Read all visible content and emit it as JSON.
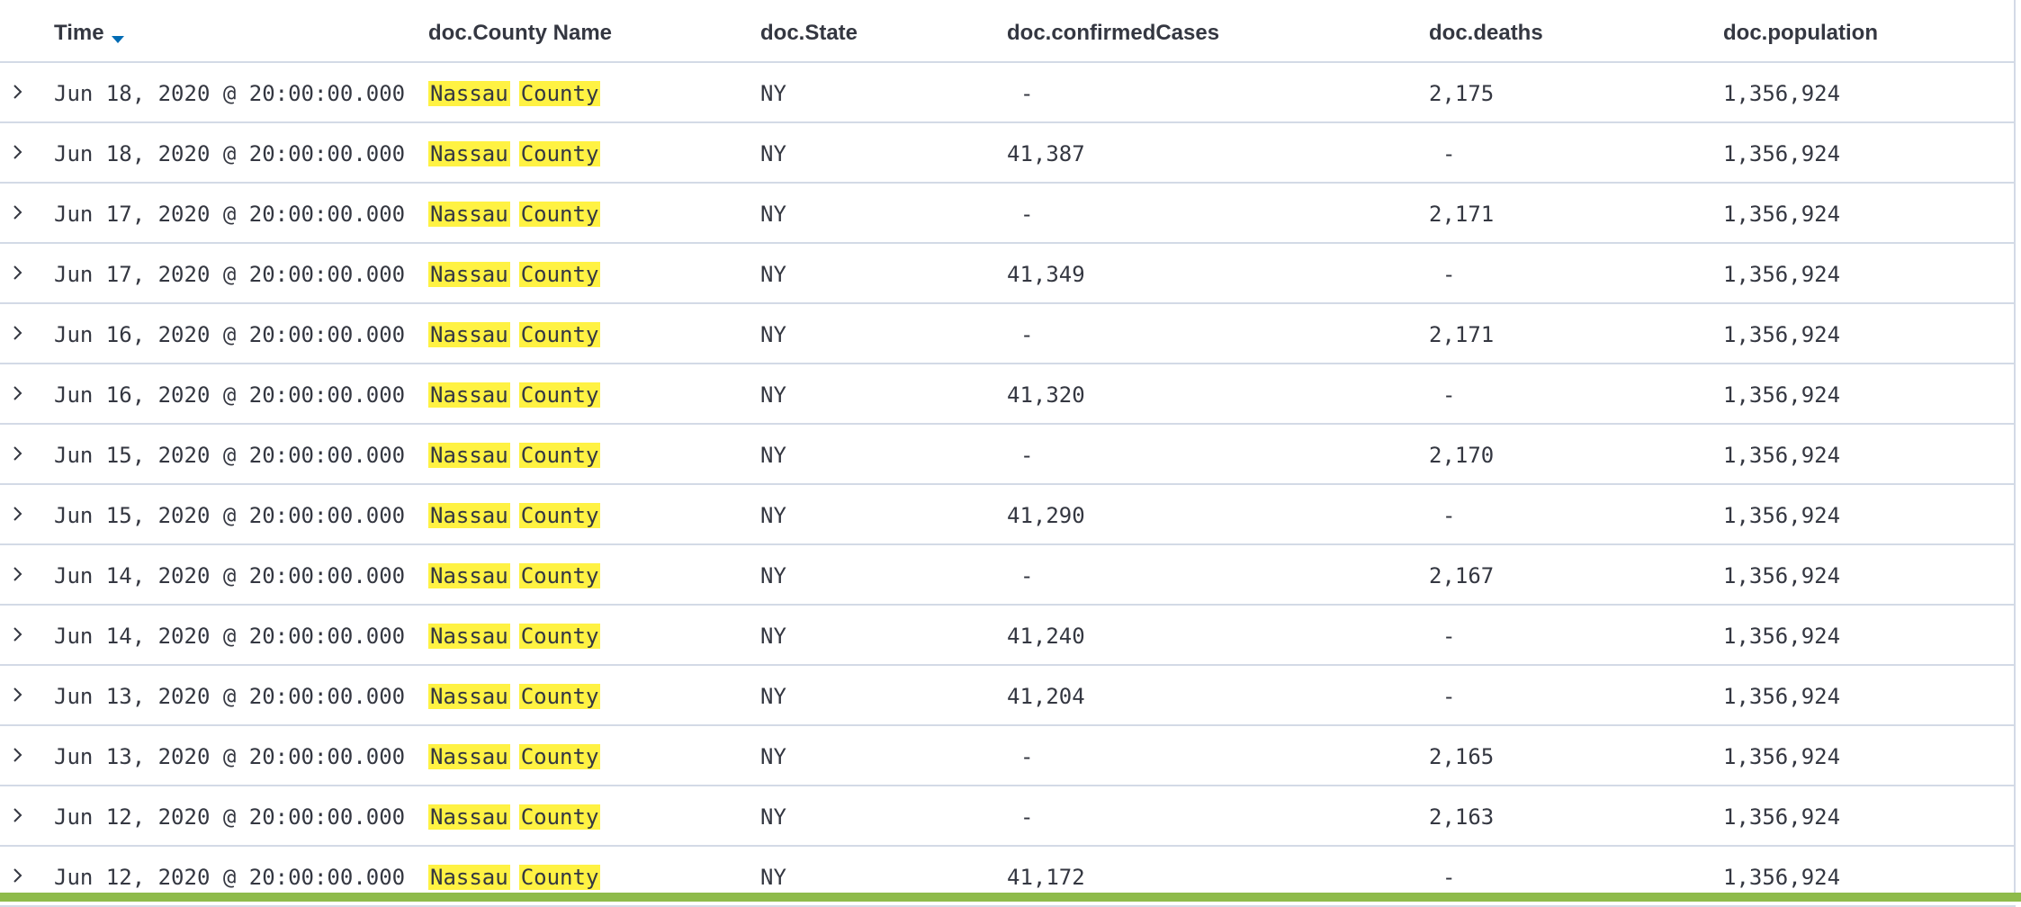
{
  "table": {
    "columns": [
      {
        "key": "time",
        "label": "Time",
        "sorted": "desc"
      },
      {
        "key": "county",
        "label": "doc.County Name"
      },
      {
        "key": "state",
        "label": "doc.State"
      },
      {
        "key": "confirmed",
        "label": "doc.confirmedCases"
      },
      {
        "key": "deaths",
        "label": "doc.deaths"
      },
      {
        "key": "population",
        "label": "doc.population"
      }
    ],
    "rows": [
      {
        "time": "Jun 18, 2020 @ 20:00:00.000",
        "county_word1": "Nassau",
        "county_word2": "County",
        "state": "NY",
        "confirmed": "-",
        "deaths": "2,175",
        "population": "1,356,924"
      },
      {
        "time": "Jun 18, 2020 @ 20:00:00.000",
        "county_word1": "Nassau",
        "county_word2": "County",
        "state": "NY",
        "confirmed": "41,387",
        "deaths": "-",
        "population": "1,356,924"
      },
      {
        "time": "Jun 17, 2020 @ 20:00:00.000",
        "county_word1": "Nassau",
        "county_word2": "County",
        "state": "NY",
        "confirmed": "-",
        "deaths": "2,171",
        "population": "1,356,924"
      },
      {
        "time": "Jun 17, 2020 @ 20:00:00.000",
        "county_word1": "Nassau",
        "county_word2": "County",
        "state": "NY",
        "confirmed": "41,349",
        "deaths": "-",
        "population": "1,356,924"
      },
      {
        "time": "Jun 16, 2020 @ 20:00:00.000",
        "county_word1": "Nassau",
        "county_word2": "County",
        "state": "NY",
        "confirmed": "-",
        "deaths": "2,171",
        "population": "1,356,924"
      },
      {
        "time": "Jun 16, 2020 @ 20:00:00.000",
        "county_word1": "Nassau",
        "county_word2": "County",
        "state": "NY",
        "confirmed": "41,320",
        "deaths": "-",
        "population": "1,356,924"
      },
      {
        "time": "Jun 15, 2020 @ 20:00:00.000",
        "county_word1": "Nassau",
        "county_word2": "County",
        "state": "NY",
        "confirmed": "-",
        "deaths": "2,170",
        "population": "1,356,924"
      },
      {
        "time": "Jun 15, 2020 @ 20:00:00.000",
        "county_word1": "Nassau",
        "county_word2": "County",
        "state": "NY",
        "confirmed": "41,290",
        "deaths": "-",
        "population": "1,356,924"
      },
      {
        "time": "Jun 14, 2020 @ 20:00:00.000",
        "county_word1": "Nassau",
        "county_word2": "County",
        "state": "NY",
        "confirmed": "-",
        "deaths": "2,167",
        "population": "1,356,924"
      },
      {
        "time": "Jun 14, 2020 @ 20:00:00.000",
        "county_word1": "Nassau",
        "county_word2": "County",
        "state": "NY",
        "confirmed": "41,240",
        "deaths": "-",
        "population": "1,356,924"
      },
      {
        "time": "Jun 13, 2020 @ 20:00:00.000",
        "county_word1": "Nassau",
        "county_word2": "County",
        "state": "NY",
        "confirmed": "41,204",
        "deaths": "-",
        "population": "1,356,924"
      },
      {
        "time": "Jun 13, 2020 @ 20:00:00.000",
        "county_word1": "Nassau",
        "county_word2": "County",
        "state": "NY",
        "confirmed": "-",
        "deaths": "2,165",
        "population": "1,356,924"
      },
      {
        "time": "Jun 12, 2020 @ 20:00:00.000",
        "county_word1": "Nassau",
        "county_word2": "County",
        "state": "NY",
        "confirmed": "-",
        "deaths": "2,163",
        "population": "1,356,924"
      },
      {
        "time": "Jun 12, 2020 @ 20:00:00.000",
        "county_word1": "Nassau",
        "county_word2": "County",
        "state": "NY",
        "confirmed": "41,172",
        "deaths": "-",
        "population": "1,356,924"
      }
    ]
  },
  "icons": {
    "sort": "sort-descending-icon",
    "expand": "chevron-right-icon"
  },
  "colors": {
    "highlight": "#fff243",
    "sort_arrow": "#006bb4",
    "border": "#d3dae6",
    "footer_bar": "#8ebb4b"
  }
}
